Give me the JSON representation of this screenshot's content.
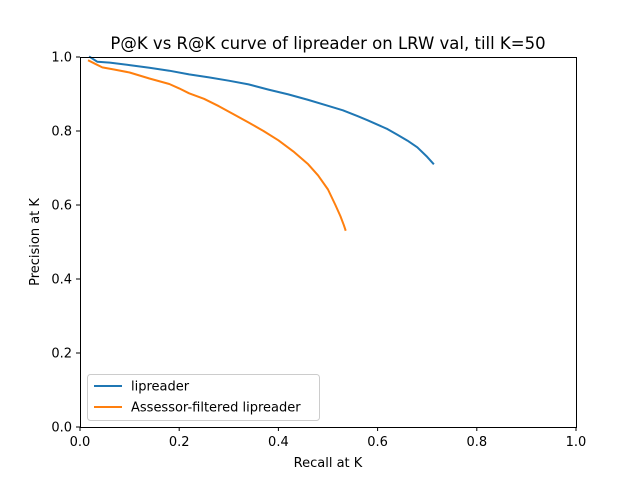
{
  "chart_data": {
    "type": "line",
    "title": "P@K vs R@K curve of lipreader on LRW val, till K=50",
    "xlabel": "Recall at K",
    "ylabel": "Precision at K",
    "xlim": [
      0.0,
      1.0
    ],
    "ylim": [
      0.0,
      1.0
    ],
    "xticks": [
      0.0,
      0.2,
      0.4,
      0.6,
      0.8,
      1.0
    ],
    "xtick_labels": [
      "0.0",
      "0.2",
      "0.4",
      "0.6",
      "0.8",
      "1.0"
    ],
    "yticks": [
      0.0,
      0.2,
      0.4,
      0.6,
      0.8,
      1.0
    ],
    "ytick_labels": [
      "0.0",
      "0.2",
      "0.4",
      "0.6",
      "0.8",
      "1.0"
    ],
    "grid": false,
    "legend_position": "lower-left",
    "series": [
      {
        "name": "lipreader",
        "color": "#1f77b4",
        "x": [
          0.02,
          0.035,
          0.06,
          0.1,
          0.14,
          0.18,
          0.22,
          0.26,
          0.3,
          0.34,
          0.38,
          0.42,
          0.46,
          0.5,
          0.53,
          0.56,
          0.58,
          0.6,
          0.62,
          0.64,
          0.66,
          0.68,
          0.7,
          0.712
        ],
        "y": [
          1.0,
          0.987,
          0.985,
          0.978,
          0.971,
          0.963,
          0.953,
          0.945,
          0.936,
          0.926,
          0.912,
          0.899,
          0.884,
          0.868,
          0.856,
          0.84,
          0.829,
          0.817,
          0.805,
          0.79,
          0.774,
          0.756,
          0.73,
          0.712
        ]
      },
      {
        "name": "Assessor-filtered lipreader",
        "color": "#ff7f0e",
        "x": [
          0.018,
          0.03,
          0.045,
          0.07,
          0.1,
          0.14,
          0.18,
          0.2,
          0.22,
          0.25,
          0.28,
          0.31,
          0.34,
          0.37,
          0.4,
          0.43,
          0.46,
          0.48,
          0.5,
          0.515,
          0.525,
          0.532,
          0.535
        ],
        "y": [
          0.99,
          0.982,
          0.972,
          0.966,
          0.958,
          0.942,
          0.927,
          0.915,
          0.902,
          0.887,
          0.867,
          0.845,
          0.823,
          0.8,
          0.775,
          0.745,
          0.71,
          0.68,
          0.642,
          0.6,
          0.57,
          0.545,
          0.533
        ]
      }
    ]
  }
}
